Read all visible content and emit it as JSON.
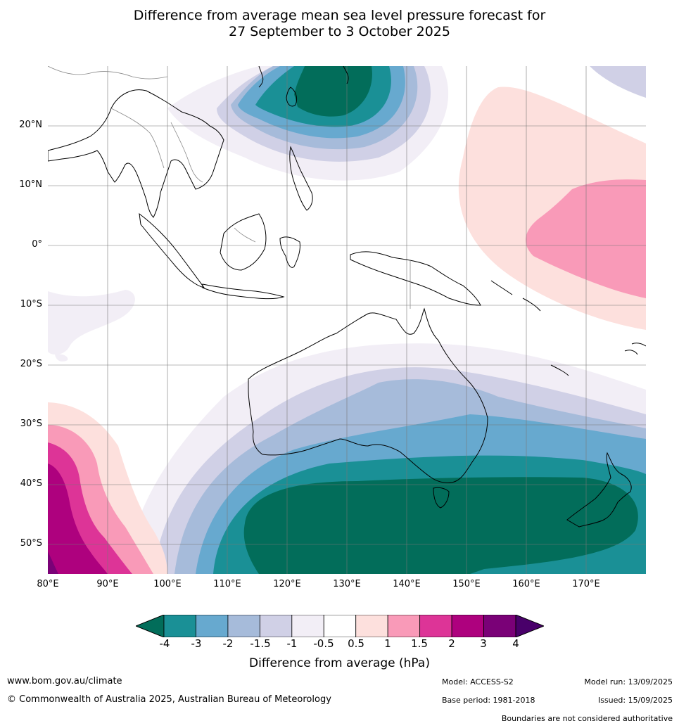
{
  "title": {
    "line1": "Difference from average mean sea level pressure forecast for",
    "line2": "27 September to 3 October 2025"
  },
  "map": {
    "lat_labels": [
      "20°N",
      "10°N",
      "0°",
      "10°S",
      "20°S",
      "30°S",
      "40°S",
      "50°S"
    ],
    "lon_labels": [
      "80°E",
      "90°E",
      "100°E",
      "110°E",
      "120°E",
      "130°E",
      "140°E",
      "150°E",
      "160°E",
      "170°E"
    ],
    "lon_range": [
      80,
      180
    ],
    "lat_range": [
      -55,
      30
    ]
  },
  "colorbar": {
    "tick_labels": [
      "-4",
      "-3",
      "-2",
      "-1.5",
      "-1",
      "-0.5",
      "0.5",
      "1",
      "1.5",
      "2",
      "3",
      "4"
    ],
    "colors": [
      "#1a9096",
      "#67a9cf",
      "#a6bbda",
      "#d0d0e6",
      "#f2eef6",
      "#ffffff",
      "#fde0dd",
      "#f99ab8",
      "#dd3497",
      "#ae017e",
      "#7a0177"
    ],
    "under_color": "#026d5a",
    "over_color": "#49006a",
    "label": "Difference from average (hPa)"
  },
  "footer": {
    "website": "www.bom.gov.au/climate",
    "copyright": "© Commonwealth of Australia 2025, Australian Bureau of Meteorology",
    "model": "Model: ACCESS-S2",
    "base_period": "Base period: 1981-2018",
    "model_run": "Model run: 13/09/2025",
    "issued": "Issued: 15/09/2025",
    "disclaimer": "Boundaries are not considered authoritative"
  }
}
